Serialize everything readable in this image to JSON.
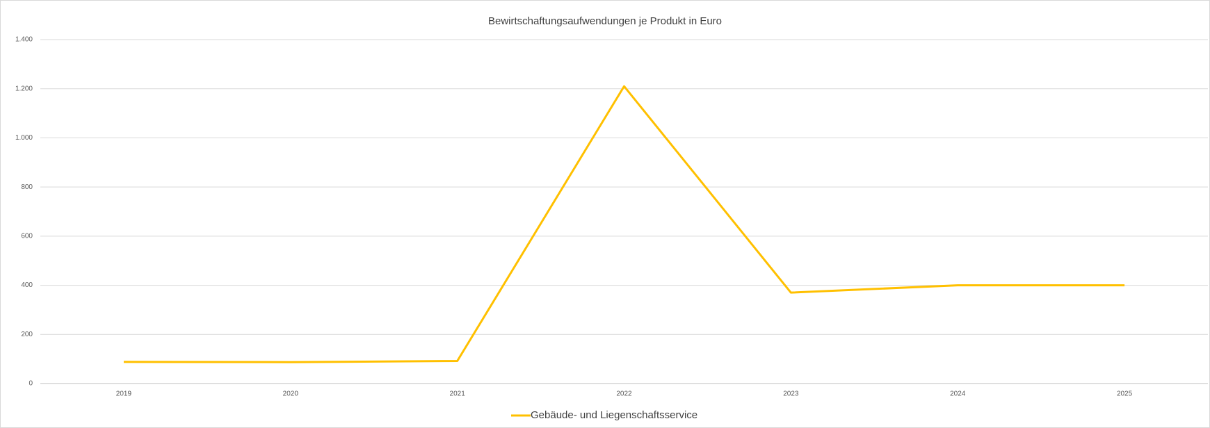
{
  "chart_data": {
    "type": "line",
    "title": "Bewirtschaftungsaufwendungen  je Produkt in Euro",
    "categories": [
      "2019",
      "2020",
      "2021",
      "2022",
      "2023",
      "2024",
      "2025"
    ],
    "series": [
      {
        "name": "Gebäude- und Liegenschaftsservice",
        "color": "#ffc000",
        "values": [
          88,
          87,
          92,
          1210,
          370,
          400,
          400
        ]
      }
    ],
    "ylim": [
      0,
      1400
    ],
    "yticks": [
      0,
      200,
      400,
      600,
      800,
      {
        "value": 1000,
        "label": "1.000"
      },
      {
        "value": 1200,
        "label": "1.200"
      },
      {
        "value": 1400,
        "label": "1.400"
      }
    ],
    "grid": true,
    "legend": "bottom"
  }
}
